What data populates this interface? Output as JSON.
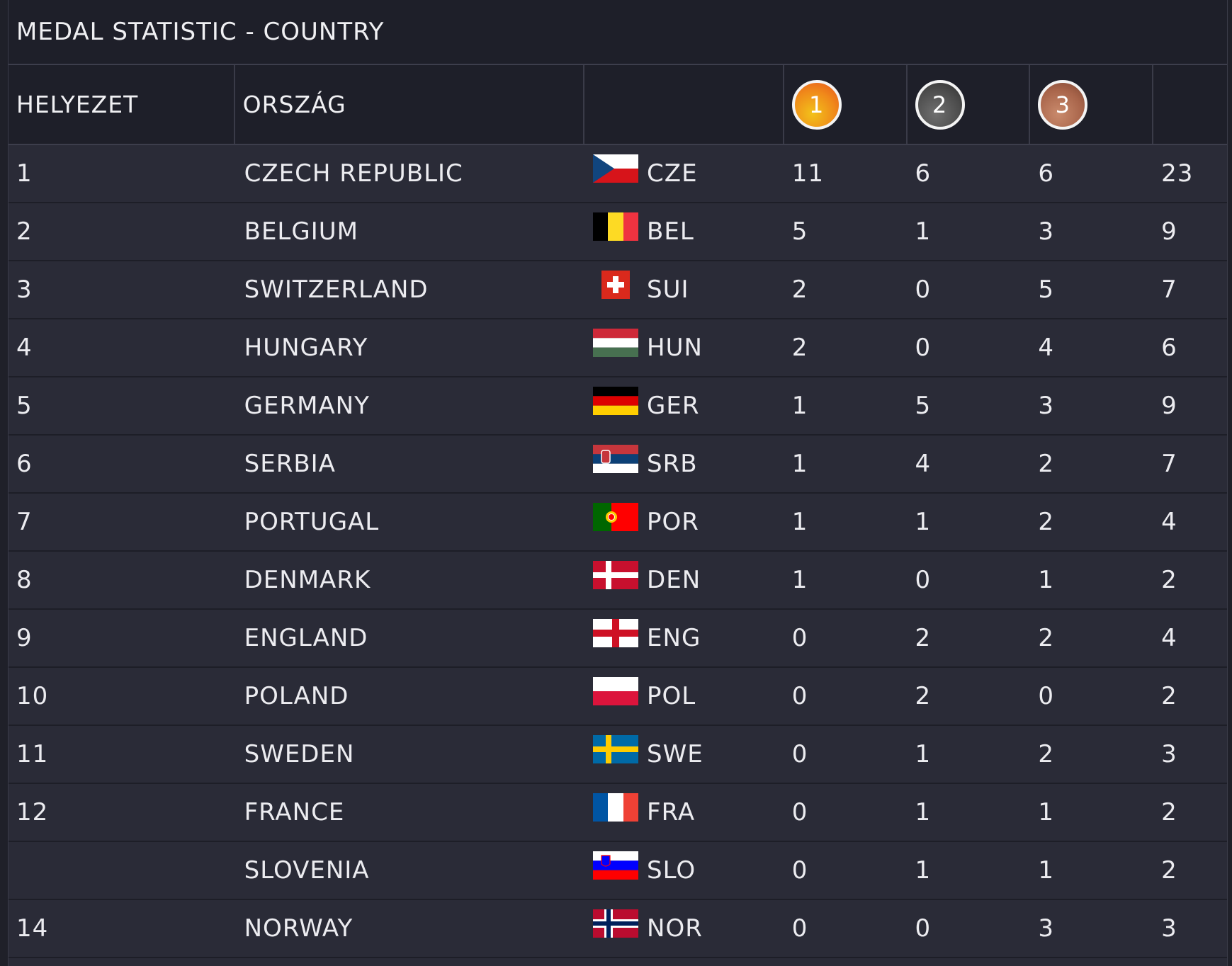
{
  "title": "MEDAL STATISTIC - COUNTRY",
  "headers": {
    "rank": "HELYEZET",
    "country": "ORSZÁG",
    "flag": "",
    "gold": "1",
    "silver": "2",
    "bronze": "3",
    "total": ""
  },
  "colors": {
    "background": "#2a2b37",
    "header_background": "#1e1f29",
    "gold": "#f08a1a",
    "silver": "#4c4c4c",
    "bronze": "#a8644a"
  },
  "rows": [
    {
      "rank": "1",
      "country": "CZECH REPUBLIC",
      "code": "CZE",
      "flag": "cze",
      "gold": "11",
      "silver": "6",
      "bronze": "6",
      "total": "23"
    },
    {
      "rank": "2",
      "country": "BELGIUM",
      "code": "BEL",
      "flag": "bel",
      "gold": "5",
      "silver": "1",
      "bronze": "3",
      "total": "9"
    },
    {
      "rank": "3",
      "country": "SWITZERLAND",
      "code": "SUI",
      "flag": "sui",
      "gold": "2",
      "silver": "0",
      "bronze": "5",
      "total": "7"
    },
    {
      "rank": "4",
      "country": "HUNGARY",
      "code": "HUN",
      "flag": "hun",
      "gold": "2",
      "silver": "0",
      "bronze": "4",
      "total": "6"
    },
    {
      "rank": "5",
      "country": "GERMANY",
      "code": "GER",
      "flag": "ger",
      "gold": "1",
      "silver": "5",
      "bronze": "3",
      "total": "9"
    },
    {
      "rank": "6",
      "country": "SERBIA",
      "code": "SRB",
      "flag": "srb",
      "gold": "1",
      "silver": "4",
      "bronze": "2",
      "total": "7"
    },
    {
      "rank": "7",
      "country": "PORTUGAL",
      "code": "POR",
      "flag": "por",
      "gold": "1",
      "silver": "1",
      "bronze": "2",
      "total": "4"
    },
    {
      "rank": "8",
      "country": "DENMARK",
      "code": "DEN",
      "flag": "den",
      "gold": "1",
      "silver": "0",
      "bronze": "1",
      "total": "2"
    },
    {
      "rank": "9",
      "country": "ENGLAND",
      "code": "ENG",
      "flag": "eng",
      "gold": "0",
      "silver": "2",
      "bronze": "2",
      "total": "4"
    },
    {
      "rank": "10",
      "country": "POLAND",
      "code": "POL",
      "flag": "pol",
      "gold": "0",
      "silver": "2",
      "bronze": "0",
      "total": "2"
    },
    {
      "rank": "11",
      "country": "SWEDEN",
      "code": "SWE",
      "flag": "swe",
      "gold": "0",
      "silver": "1",
      "bronze": "2",
      "total": "3"
    },
    {
      "rank": "12",
      "country": "FRANCE",
      "code": "FRA",
      "flag": "fra",
      "gold": "0",
      "silver": "1",
      "bronze": "1",
      "total": "2"
    },
    {
      "rank": "",
      "country": "SLOVENIA",
      "code": "SLO",
      "flag": "slo",
      "gold": "0",
      "silver": "1",
      "bronze": "1",
      "total": "2"
    },
    {
      "rank": "14",
      "country": "NORWAY",
      "code": "NOR",
      "flag": "nor",
      "gold": "0",
      "silver": "0",
      "bronze": "3",
      "total": "3"
    }
  ]
}
